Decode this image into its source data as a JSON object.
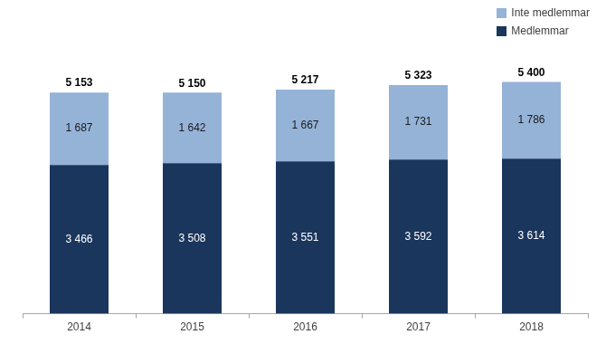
{
  "chart_data": {
    "type": "bar",
    "stacked": true,
    "categories": [
      "2014",
      "2015",
      "2016",
      "2017",
      "2018"
    ],
    "series": [
      {
        "name": "Medlemmar",
        "color": "#1b365d",
        "values": [
          3466,
          3508,
          3551,
          3592,
          3614
        ],
        "value_labels": [
          "3 466",
          "3 508",
          "3 551",
          "3 592",
          "3 614"
        ]
      },
      {
        "name": "Inte medlemmar",
        "color": "#95b3d7",
        "values": [
          1687,
          1642,
          1667,
          1731,
          1786
        ],
        "value_labels": [
          "1 687",
          "1 642",
          "1 667",
          "1 731",
          "1 786"
        ]
      }
    ],
    "totals": [
      5153,
      5150,
      5217,
      5323,
      5400
    ],
    "total_labels": [
      "5 153",
      "5 150",
      "5 217",
      "5 323",
      "5 400"
    ],
    "data_labels": true,
    "legend": "upper right",
    "grid": false,
    "tick_labels": "x"
  }
}
